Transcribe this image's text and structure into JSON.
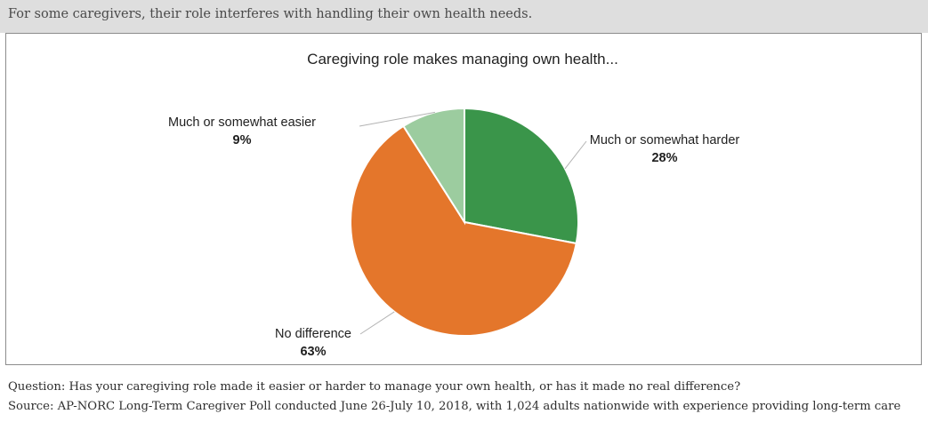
{
  "header": {
    "text": "For some caregivers, their role interferes with handling their own health needs."
  },
  "chart_data": {
    "type": "pie",
    "title": "Caregiving role makes managing own health...",
    "slices": [
      {
        "label": "Much or somewhat harder",
        "value": 28,
        "value_label": "28%",
        "color": "#3a954a"
      },
      {
        "label": "No difference",
        "value": 63,
        "value_label": "63%",
        "color": "#e4762b"
      },
      {
        "label": "Much or somewhat easier",
        "value": 9,
        "value_label": "9%",
        "color": "#9ccc9f"
      }
    ]
  },
  "footnotes": {
    "question": "Question: Has your caregiving role made it easier or harder to manage your own health, or has it made no real difference?",
    "source": "Source: AP-NORC Long-Term Caregiver Poll conducted June 26-July 10, 2018, with 1,024 adults nationwide with experience providing long-term care"
  }
}
